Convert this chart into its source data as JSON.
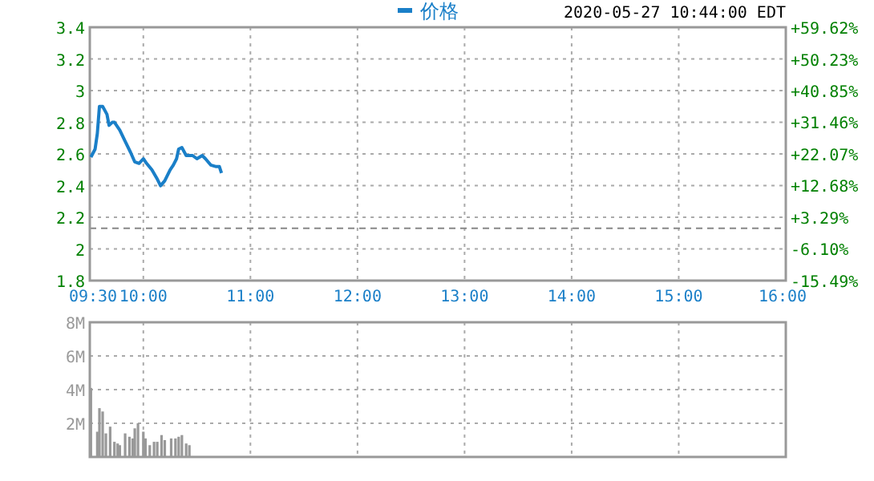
{
  "chart_data": [
    {
      "type": "line",
      "annotations": [
        "2020-05-27 10:44:00 EDT"
      ],
      "legend": "top",
      "grid": true,
      "line_style": "solid",
      "marker": "none",
      "series": [
        {
          "name": "价格",
          "color": "#1a7fc8",
          "x": [
            9.51,
            9.55,
            9.57,
            9.59,
            9.62,
            9.66,
            9.68,
            9.71,
            9.73,
            9.78,
            9.83,
            9.88,
            9.92,
            9.96,
            10.0,
            10.03,
            10.08,
            10.13,
            10.16,
            10.2,
            10.25,
            10.28,
            10.31,
            10.33,
            10.36,
            10.4,
            10.46,
            10.5,
            10.55,
            10.58,
            10.63,
            10.68,
            10.71,
            10.73
          ],
          "values": [
            2.58,
            2.63,
            2.73,
            2.9,
            2.9,
            2.85,
            2.78,
            2.8,
            2.8,
            2.75,
            2.68,
            2.61,
            2.55,
            2.54,
            2.57,
            2.54,
            2.5,
            2.44,
            2.4,
            2.43,
            2.5,
            2.53,
            2.57,
            2.63,
            2.64,
            2.59,
            2.59,
            2.57,
            2.59,
            2.57,
            2.53,
            2.52,
            2.52,
            2.48
          ]
        }
      ],
      "xlim": [
        9.5,
        16
      ],
      "xticks": [
        {
          "value": 9.5,
          "label": "09:30"
        },
        {
          "value": 10,
          "label": "10:00"
        },
        {
          "value": 11,
          "label": "11:00"
        },
        {
          "value": 12,
          "label": "12:00"
        },
        {
          "value": 13,
          "label": "13:00"
        },
        {
          "value": 14,
          "label": "14:00"
        },
        {
          "value": 15,
          "label": "15:00"
        },
        {
          "value": 16,
          "label": "16:00"
        }
      ],
      "ylim": [
        1.8,
        3.4
      ],
      "yticks": [
        1.8,
        2.0,
        2.2,
        2.4,
        2.6,
        2.8,
        3.0,
        3.2,
        3.4
      ],
      "y2lim": [
        -15.49,
        59.62
      ],
      "y2ticks": [
        {
          "value": -15.49,
          "label": "-15.49%"
        },
        {
          "value": -6.1,
          "label": "-6.10%"
        },
        {
          "value": 3.29,
          "label": "+3.29%"
        },
        {
          "value": 12.68,
          "label": "+12.68%"
        },
        {
          "value": 22.07,
          "label": "+22.07%"
        },
        {
          "value": 31.46,
          "label": "+31.46%"
        },
        {
          "value": 40.85,
          "label": "+40.85%"
        },
        {
          "value": 50.23,
          "label": "+50.23%"
        },
        {
          "value": 59.62,
          "label": "+59.62%"
        }
      ],
      "ref_lines": [
        {
          "axis": "y",
          "value": 2.13,
          "color": "#888888",
          "line_style": "dashed"
        }
      ]
    },
    {
      "type": "bar",
      "grid": true,
      "tick_labels": "y",
      "color": "#999999",
      "x": [
        9.51,
        9.57,
        9.59,
        9.62,
        9.65,
        9.69,
        9.73,
        9.76,
        9.78,
        9.83,
        9.87,
        9.9,
        9.92,
        9.95,
        10.0,
        10.02,
        10.06,
        10.1,
        10.13,
        10.17,
        10.2,
        10.26,
        10.3,
        10.33,
        10.36,
        10.4,
        10.43
      ],
      "values": [
        4.1,
        1.5,
        2.9,
        2.7,
        1.4,
        1.8,
        0.9,
        0.8,
        0.7,
        1.4,
        1.2,
        1.1,
        1.7,
        2.0,
        1.5,
        1.1,
        0.7,
        0.9,
        0.9,
        1.3,
        1.0,
        1.1,
        1.1,
        1.2,
        1.3,
        0.8,
        0.7
      ],
      "xlim": [
        9.5,
        16
      ],
      "xticks": [
        9.5,
        10,
        11,
        12,
        13,
        14,
        15,
        16
      ],
      "ylim": [
        0,
        8
      ],
      "yticks": [
        {
          "value": 0,
          "label": null
        },
        {
          "value": 2,
          "label": "2M"
        },
        {
          "value": 4,
          "label": "4M"
        },
        {
          "value": 6,
          "label": "6M"
        },
        {
          "value": 8,
          "label": "8M"
        }
      ]
    }
  ]
}
